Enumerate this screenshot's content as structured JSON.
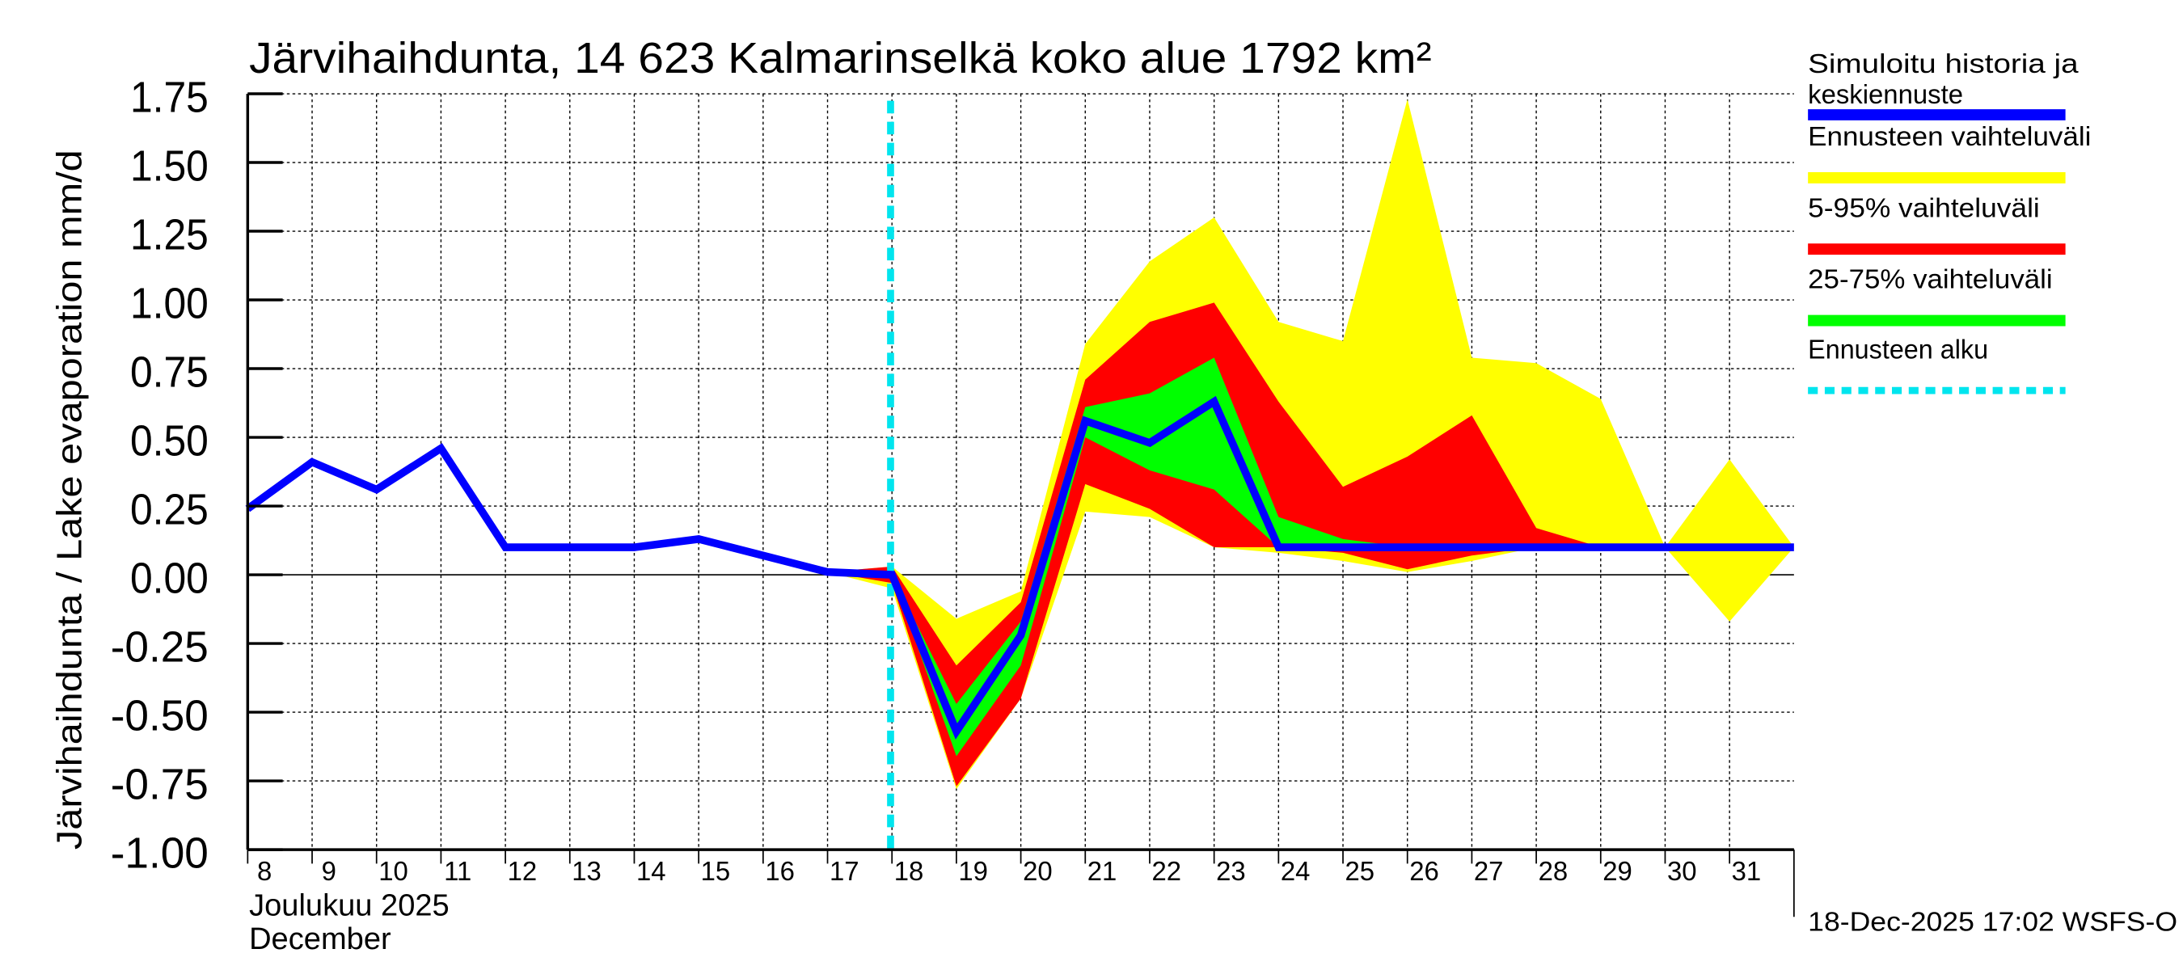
{
  "chart_data": {
    "type": "area",
    "title": "Järvihaihdunta, 14 623 Kalmarinselkä koko alue 1792 km²",
    "ylabel": "Järvihaihdunta / Lake evaporation   mm/d",
    "xlabel_fi": "Joulukuu  2025",
    "xlabel_en": "December",
    "ylim": [
      -1.0,
      1.75
    ],
    "xlim": [
      8,
      32
    ],
    "yticks": [
      "1.75",
      "1.50",
      "1.25",
      "1.00",
      "0.75",
      "0.50",
      "0.25",
      "0.00",
      "-0.25",
      "-0.50",
      "-0.75",
      "-1.00"
    ],
    "xticks": [
      "8",
      "9",
      "10",
      "11",
      "12",
      "13",
      "14",
      "15",
      "16",
      "17",
      "18",
      "19",
      "20",
      "21",
      "22",
      "23",
      "24",
      "25",
      "26",
      "27",
      "28",
      "29",
      "30",
      "31"
    ],
    "forecast_start_day": 18,
    "series": [
      {
        "name": "Simuloitu historia ja keskiennuste",
        "color": "#0000ff",
        "x": [
          8,
          9,
          10,
          11,
          12,
          13,
          14,
          15,
          16,
          17,
          18,
          19,
          20,
          21,
          22,
          23,
          24,
          25,
          26,
          27,
          28,
          29,
          30,
          31,
          32
        ],
        "values": [
          0.24,
          0.41,
          0.31,
          0.46,
          0.1,
          0.1,
          0.1,
          0.13,
          0.07,
          0.01,
          0.0,
          -0.57,
          -0.22,
          0.56,
          0.48,
          0.63,
          0.1,
          0.1,
          0.1,
          0.1,
          0.1,
          0.1,
          0.1,
          0.1,
          0.1
        ]
      },
      {
        "name": "Ennusteen vaihteluväli",
        "color": "#ffff00",
        "x": [
          17,
          18,
          19,
          20,
          21,
          22,
          23,
          24,
          25,
          26,
          27,
          28,
          29,
          30,
          31,
          32
        ],
        "upper": [
          0.01,
          0.03,
          -0.16,
          -0.06,
          0.84,
          1.14,
          1.3,
          0.92,
          0.85,
          1.73,
          0.79,
          0.77,
          0.64,
          0.1,
          0.42,
          0.1
        ],
        "lower": [
          0.01,
          -0.05,
          -0.78,
          -0.45,
          0.23,
          0.21,
          0.1,
          0.08,
          0.05,
          0.01,
          0.05,
          0.1,
          0.1,
          0.1,
          -0.17,
          0.1
        ]
      },
      {
        "name": "5-95% vaihteluväli",
        "color": "#ff0000",
        "x": [
          17,
          18,
          19,
          20,
          21,
          22,
          23,
          24,
          25,
          26,
          27,
          28,
          29
        ],
        "upper": [
          0.01,
          0.03,
          -0.33,
          -0.1,
          0.71,
          0.92,
          0.99,
          0.63,
          0.32,
          0.43,
          0.58,
          0.17,
          0.1
        ],
        "lower": [
          0.01,
          -0.03,
          -0.77,
          -0.45,
          0.33,
          0.24,
          0.1,
          0.1,
          0.08,
          0.02,
          0.07,
          0.1,
          0.1
        ]
      },
      {
        "name": "25-75% vaihteluväli",
        "color": "#00ff00",
        "x": [
          18,
          19,
          20,
          21,
          22,
          23,
          24,
          25,
          26
        ],
        "upper": [
          0.0,
          -0.47,
          -0.17,
          0.61,
          0.66,
          0.79,
          0.21,
          0.13,
          0.1
        ],
        "lower": [
          0.0,
          -0.66,
          -0.33,
          0.5,
          0.38,
          0.31,
          0.1,
          0.1,
          0.1
        ]
      }
    ],
    "legend": {
      "placement": "right",
      "items": [
        {
          "label": "Simuloitu historia ja",
          "label2": "keskiennuste",
          "color": "#0000ff",
          "style": "solid"
        },
        {
          "label": "Ennusteen vaihteluväli",
          "color": "#ffff00",
          "style": "solid"
        },
        {
          "label": "5-95% vaihteluväli",
          "color": "#ff0000",
          "style": "solid"
        },
        {
          "label": "25-75% vaihteluväli",
          "color": "#00ff00",
          "style": "solid"
        },
        {
          "label": "Ennusteen alku",
          "color": "#00e5ee",
          "style": "dashed"
        }
      ]
    },
    "grid": true,
    "footer": "18-Dec-2025 17:02 WSFS-O"
  }
}
